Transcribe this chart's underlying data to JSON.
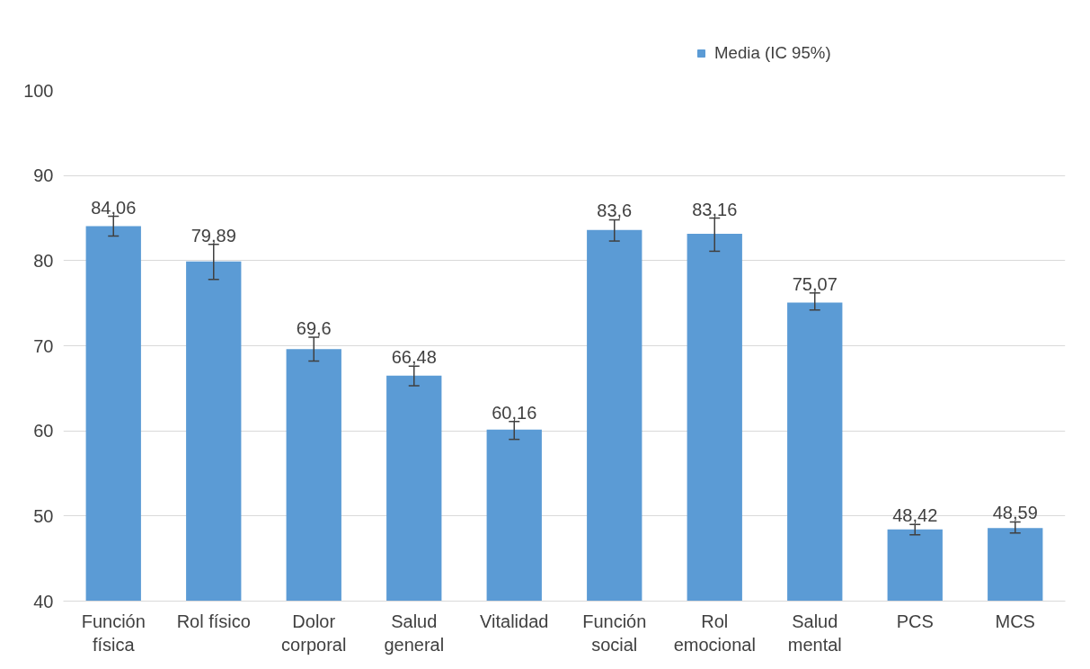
{
  "chart_data": {
    "type": "bar",
    "categories": [
      "Función física",
      "Rol físico",
      "Dolor corporal",
      "Salud general",
      "Vitalidad",
      "Función social",
      "Rol emocional",
      "Salud mental",
      "PCS",
      "MCS"
    ],
    "series": [
      {
        "name": "Media (IC 95%)",
        "color": "#5b9bd5",
        "values": [
          84.06,
          79.89,
          69.6,
          66.48,
          60.16,
          83.6,
          83.16,
          75.07,
          48.42,
          48.59
        ],
        "errors": [
          [
            82.9,
            85.2
          ],
          [
            77.8,
            81.9
          ],
          [
            68.2,
            71.0
          ],
          [
            65.3,
            67.6
          ],
          [
            59.0,
            61.1
          ],
          [
            82.3,
            84.8
          ],
          [
            81.1,
            85.0
          ],
          [
            74.2,
            76.2
          ],
          [
            47.8,
            49.0
          ],
          [
            48.0,
            49.3
          ]
        ]
      }
    ],
    "value_labels": [
      "84,06",
      "79,89",
      "69,6",
      "66,48",
      "60,16",
      "83,6",
      "83,16",
      "75,07",
      "48,42",
      "48,59"
    ],
    "ylim": [
      40,
      100
    ],
    "yticks": [
      40,
      50,
      60,
      70,
      80,
      90,
      100
    ],
    "grid": "y",
    "legend": "top"
  }
}
